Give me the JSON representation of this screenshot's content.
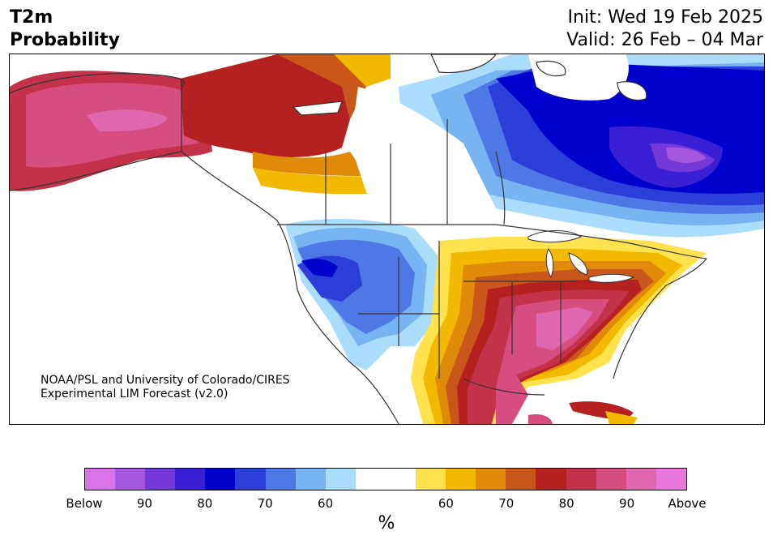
{
  "header": {
    "variable": "T2m",
    "product": "Probability",
    "init": "Init: Wed 19 Feb 2025",
    "valid": "Valid: 26 Feb – 04 Mar"
  },
  "credit": {
    "line1": "NOAA/PSL and University of Colorado/CIRES",
    "line2": "Experimental LIM Forecast (v2.0)"
  },
  "colorbar": {
    "unit": "%",
    "colors": [
      "#d973e8",
      "#a657e0",
      "#7438d9",
      "#3a1fd4",
      "#0000cc",
      "#2a3ed8",
      "#4d78e6",
      "#78b3f2",
      "#aadcfc",
      "#ffffff",
      "#ffffff",
      "#ffe24d",
      "#f2b900",
      "#e08a0a",
      "#c9561a",
      "#b52020",
      "#c2334a",
      "#d64d80",
      "#e067b0",
      "#e878dc"
    ],
    "tick_labels": [
      "Below",
      "90",
      "80",
      "70",
      "60",
      "60",
      "70",
      "80",
      "90",
      "Above"
    ]
  },
  "legend_colors": {
    "cold_strong": "#0000cc",
    "cold_mid": "#4d78e6",
    "cold_light": "#aadcfc",
    "warm_light": "#ffe24d",
    "warm_mid": "#e08a0a",
    "warm_strong": "#b52020",
    "warm_extreme": "#d64d80"
  }
}
